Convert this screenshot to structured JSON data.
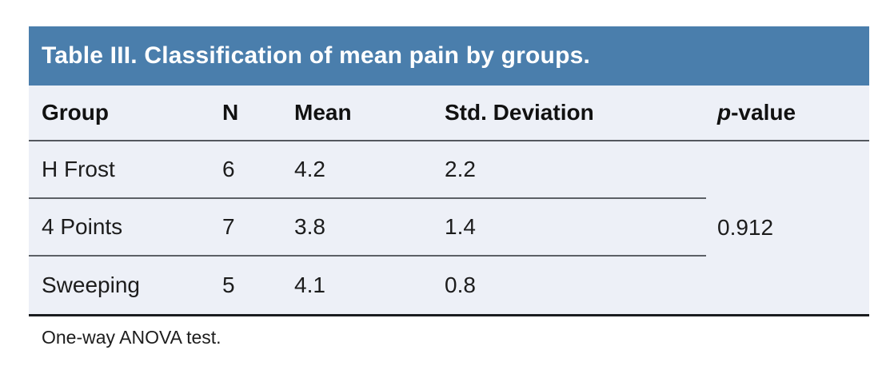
{
  "colors": {
    "header_bg": "#4a7eac",
    "table_bg": "#edf0f7"
  },
  "table": {
    "title": "Table III. Classification of mean pain by groups.",
    "columns": {
      "group": "Group",
      "n": "N",
      "mean": "Mean",
      "std": "Std. Deviation",
      "p_italic": "p",
      "p_rest": "-value"
    },
    "rows": [
      {
        "group": "H Frost",
        "n": "6",
        "mean": "4.2",
        "std": "2.2"
      },
      {
        "group": "4 Points",
        "n": "7",
        "mean": "3.8",
        "std": "1.4"
      },
      {
        "group": "Sweeping",
        "n": "5",
        "mean": "4.1",
        "std": "0.8"
      }
    ],
    "p_value": "0.912",
    "footnote": "One-way ANOVA test."
  }
}
